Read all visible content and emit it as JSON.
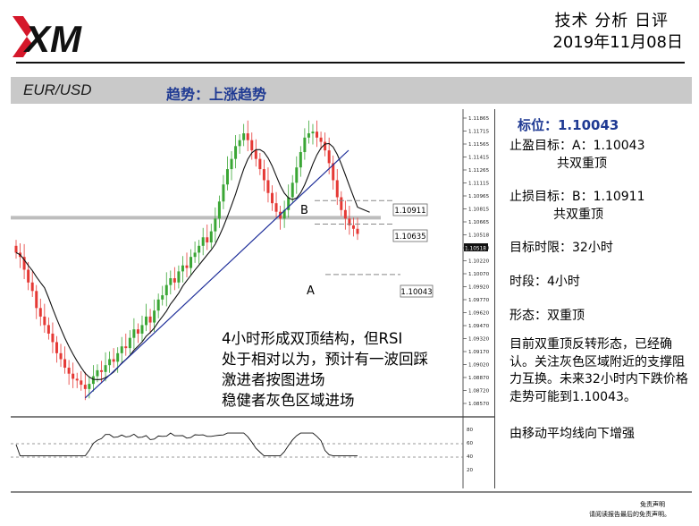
{
  "header": {
    "title": "技术 分析 日评",
    "date": "2019年11月08日"
  },
  "band": {
    "pair": "EUR/USD",
    "trend": "趋势：上涨趋势"
  },
  "chart": {
    "y_ticks": [
      "1.11865",
      "1.11715",
      "1.11565",
      "1.11415",
      "1.11265",
      "1.11115",
      "1.10965",
      "1.10815",
      "1.10665",
      "1.10518",
      "1.10370",
      "1.10220",
      "1.10070",
      "1.09920",
      "1.09770",
      "1.09620",
      "1.09470",
      "1.09320",
      "1.09170",
      "1.09020",
      "1.08870",
      "1.08720",
      "1.08570"
    ],
    "current_price": "1.10518",
    "rsi_ticks": [
      "80",
      "60",
      "40",
      "20"
    ],
    "label_a": "A",
    "label_b": "B",
    "box_b": "1.10911",
    "box_mid": "1.10635",
    "box_a": "1.10043",
    "note": {
      "line1": "4小时形成双顶结构，但RSI",
      "line2": "处于相对以为，预计有一波回踩",
      "line3": "激进者按图进场",
      "line4": "稳健者灰色区域进场"
    }
  },
  "chart_data": {
    "type": "candlestick",
    "title": "",
    "xlabel": "",
    "ylabel": "",
    "ylim": [
      1.0852,
      1.119
    ],
    "reference_lines": [
      {
        "name": "B",
        "value": 1.10911
      },
      {
        "name": "",
        "value": 1.10635
      },
      {
        "name": "A",
        "value": 1.10043
      }
    ],
    "gray_zone": 1.1071,
    "last_price": 1.10518,
    "close": [
      1.103,
      1.1025,
      1.101,
      1.0995,
      1.0985,
      1.0965,
      1.0955,
      1.0945,
      1.0935,
      1.0925,
      1.0912,
      1.0905,
      1.0895,
      1.0888,
      1.0882,
      1.088,
      1.0875,
      1.087,
      1.0876,
      1.0885,
      1.0892,
      1.089,
      1.0898,
      1.0905,
      1.0902,
      1.0912,
      1.092,
      1.0918,
      1.093,
      1.094,
      1.0935,
      1.0945,
      1.0955,
      1.0948,
      1.0962,
      1.0975,
      1.098,
      1.0992,
      1.1,
      1.0995,
      1.1008,
      1.1015,
      1.1012,
      1.1025,
      1.103,
      1.1038,
      1.1048,
      1.1042,
      1.1055,
      1.107,
      1.109,
      1.111,
      1.1128,
      1.114,
      1.1155,
      1.1162,
      1.117,
      1.1162,
      1.115,
      1.114,
      1.1128,
      1.1115,
      1.11,
      1.1088,
      1.1078,
      1.107,
      1.108,
      1.1095,
      1.1112,
      1.113,
      1.1148,
      1.1165,
      1.117,
      1.1172,
      1.1165,
      1.116,
      1.115,
      1.1135,
      1.1115,
      1.1095,
      1.108,
      1.107,
      1.1062,
      1.1058,
      1.1052
    ]
  },
  "right_panel": {
    "title": "标位：1.10043",
    "tp_label": "止盈目标：A：1.10043",
    "tp_sub": "共双重顶",
    "sl_label": "止损目标：B：1.10911",
    "sl_sub": "共双重顶",
    "time_target": "目标时限：32小时",
    "period": "时段：4小时",
    "pattern": "形态：双重顶",
    "desc": "目前双重顶反转形态，已经确认。关注灰色区域附近的支撑阻力互换。未来32小时内下跌价格走势可能到1.10043。",
    "ma_note": "由移动平均线向下增强"
  },
  "footer": {
    "line1": "免责声明",
    "line2": "请阅读报告最后的免责声明。"
  },
  "colors": {
    "brand": "#111111",
    "accent": "#1f3a93",
    "bull": "#3aa635",
    "bear": "#e53935",
    "band": "#c9c9c9"
  }
}
